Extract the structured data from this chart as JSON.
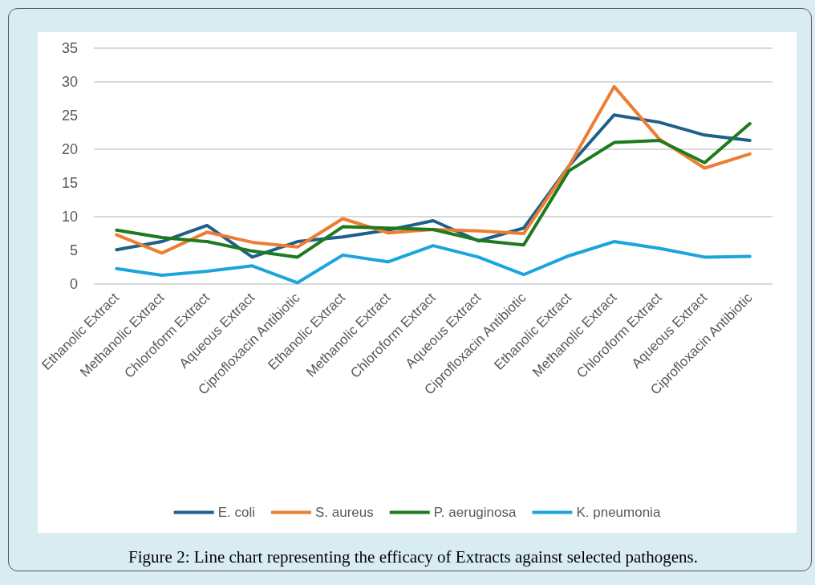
{
  "chart_data": {
    "type": "line",
    "categories": [
      "Ethanolic Extract",
      "Methanolic Extract",
      "Chloroform Extract",
      "Aqueous Extract",
      "Ciprofloxacin Antibiotic",
      "Ethanolic Extract",
      "Methanolic Extract",
      "Chloroform Extract",
      "Aqueous Extract",
      "Ciprofloxacin Antibiotic",
      "Ethanolic Extract",
      "Methanolic Extract",
      "Chloroform Extract",
      "Aqueous Extract",
      "Ciprofloxacin Antibiotic"
    ],
    "series": [
      {
        "name": "E. coli",
        "color": "#1f5f8b",
        "values": [
          5.1,
          6.3,
          8.7,
          4.0,
          6.3,
          7.0,
          8.0,
          9.4,
          6.4,
          8.3,
          17.5,
          25.1,
          24.0,
          22.1,
          21.3
        ]
      },
      {
        "name": "S. aureus",
        "color": "#ed7d31",
        "values": [
          7.3,
          4.6,
          7.7,
          6.2,
          5.5,
          9.7,
          7.6,
          8.1,
          7.9,
          7.5,
          17.5,
          29.3,
          21.5,
          17.2,
          19.3
        ]
      },
      {
        "name": "P. aeruginosa",
        "color": "#1e7a1e",
        "values": [
          8.0,
          6.9,
          6.3,
          4.9,
          4.0,
          8.5,
          8.3,
          8.1,
          6.5,
          5.8,
          16.8,
          21.0,
          21.3,
          18.0,
          23.8
        ]
      },
      {
        "name": "K. pneumonia",
        "color": "#1ca4dc",
        "values": [
          2.3,
          1.3,
          1.9,
          2.7,
          0.2,
          4.3,
          3.3,
          5.7,
          4.0,
          1.4,
          4.2,
          6.3,
          5.3,
          4.0,
          4.1
        ]
      }
    ],
    "ylim": [
      0,
      35
    ],
    "yticks": [
      0,
      5,
      10,
      15,
      20,
      25,
      30,
      35
    ],
    "grid": "y",
    "legend": "bottom",
    "marker": "none",
    "line_style": "solid",
    "annotations": [
      "Figure 2: Line chart representing the efficacy of Extracts against selected pathogens."
    ]
  }
}
